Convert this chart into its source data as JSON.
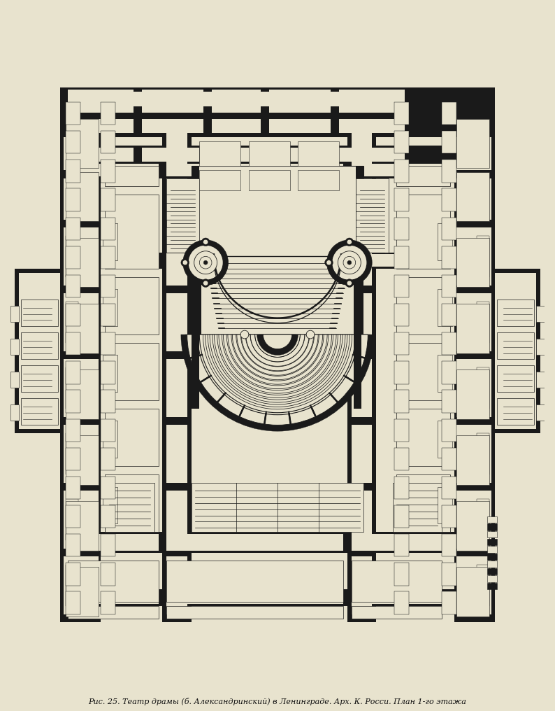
{
  "bg": "#e8e3ce",
  "wall": "#1a1a1a",
  "paper": "#e8e3ce",
  "light": "#dedad0",
  "figsize": [
    7.94,
    10.16
  ],
  "dpi": 100,
  "title": "Рис. 25. Театр драмы (б. Александринский) в Ленинграде. Арх. К. Росси. План 1-го этажа",
  "title_fontsize": 8,
  "xlim": [
    0,
    130
  ],
  "ylim": [
    0,
    155
  ]
}
